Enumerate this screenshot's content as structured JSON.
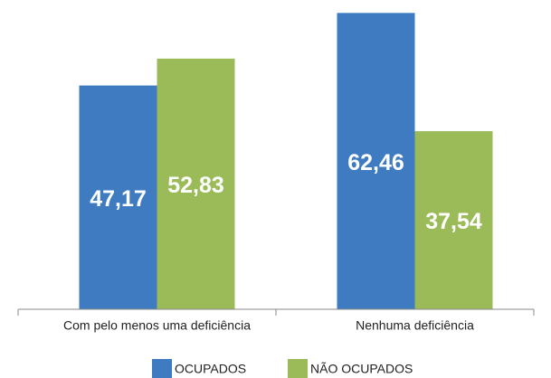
{
  "chart_data": {
    "type": "bar",
    "categories": [
      "Com pelo menos uma deficiência",
      "Nenhuma deficiência"
    ],
    "series": [
      {
        "name": "OCUPADOS",
        "color": "#3e7bc1",
        "values": [
          47.17,
          62.46
        ],
        "value_labels": [
          "47,17",
          "62,46"
        ]
      },
      {
        "name": "NÃO OCUPADOS",
        "color": "#9bbb59",
        "values": [
          52.83,
          37.54
        ],
        "value_labels": [
          "52,83",
          "37,54"
        ]
      }
    ],
    "ylim": [
      0,
      65
    ],
    "legend": "bottom"
  }
}
